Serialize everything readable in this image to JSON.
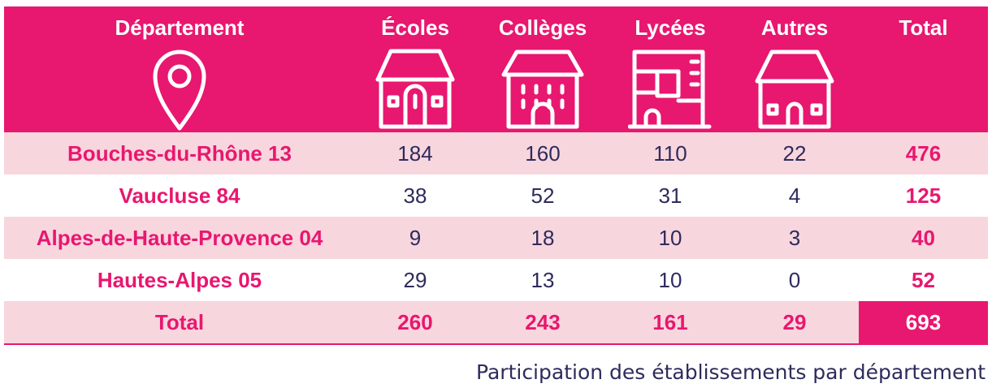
{
  "chart_data": {
    "type": "table",
    "columns": [
      "Département",
      "Écoles",
      "Collèges",
      "Lycées",
      "Autres",
      "Total"
    ],
    "column_icons": [
      "map-pin-icon",
      "school-building-icon",
      "college-building-icon",
      "lycee-building-icon",
      "house-icon",
      ""
    ],
    "rows": [
      {
        "label": "Bouches-du-Rhône 13",
        "values": [
          "184",
          "160",
          "110",
          "22"
        ],
        "total": "476"
      },
      {
        "label": "Vaucluse 84",
        "values": [
          "38",
          "52",
          "31",
          "4"
        ],
        "total": "125"
      },
      {
        "label": "Alpes-de-Haute-Provence 04",
        "values": [
          "9",
          "18",
          "10",
          "3"
        ],
        "total": "40"
      },
      {
        "label": "Hautes-Alpes 05",
        "values": [
          "29",
          "13",
          "10",
          "0"
        ],
        "total": "52"
      }
    ],
    "total_row": {
      "label": "Total",
      "values": [
        "260",
        "243",
        "161",
        "29"
      ],
      "total": "693"
    }
  },
  "caption": "Participation des établissements par département",
  "colors": {
    "accent": "#e8176f",
    "row_tint": "#f8d6de",
    "text": "#2e2b5c"
  }
}
